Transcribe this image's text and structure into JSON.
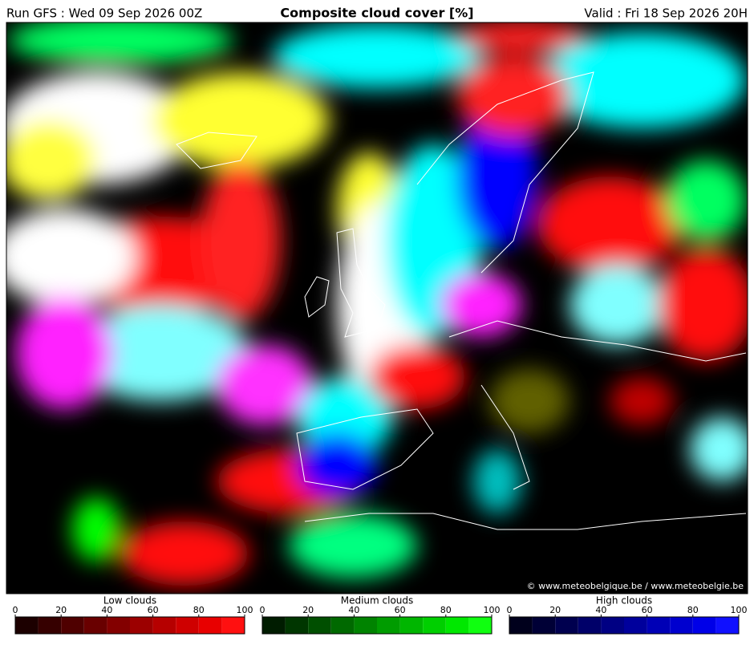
{
  "header": {
    "run": "Run GFS : Wed 09 Sep 2026 00Z",
    "title": "Composite cloud cover [%]",
    "valid": "Valid : Fri 18 Sep 2026 20H"
  },
  "map": {
    "copyright": "© www.meteobelgique.be / www.meteobelgie.be"
  },
  "colorbars": [
    {
      "title": "Low clouds",
      "ticks": [
        0,
        20,
        40,
        60,
        80,
        100
      ],
      "colors": [
        "#1c0000",
        "#360000",
        "#4f0000",
        "#690000",
        "#830000",
        "#9c0000",
        "#b60000",
        "#cf0000",
        "#e80000",
        "#ff1010"
      ]
    },
    {
      "title": "Medium clouds",
      "ticks": [
        0,
        20,
        40,
        60,
        80,
        100
      ],
      "colors": [
        "#001c00",
        "#003600",
        "#004f00",
        "#006900",
        "#008300",
        "#009c00",
        "#00b600",
        "#00cf00",
        "#00e800",
        "#10ff10"
      ]
    },
    {
      "title": "High clouds",
      "ticks": [
        0,
        20,
        40,
        60,
        80,
        100
      ],
      "colors": [
        "#00001c",
        "#000036",
        "#00004f",
        "#000069",
        "#000083",
        "#00009c",
        "#0000b6",
        "#0000cf",
        "#0000e8",
        "#1010ff"
      ]
    }
  ]
}
